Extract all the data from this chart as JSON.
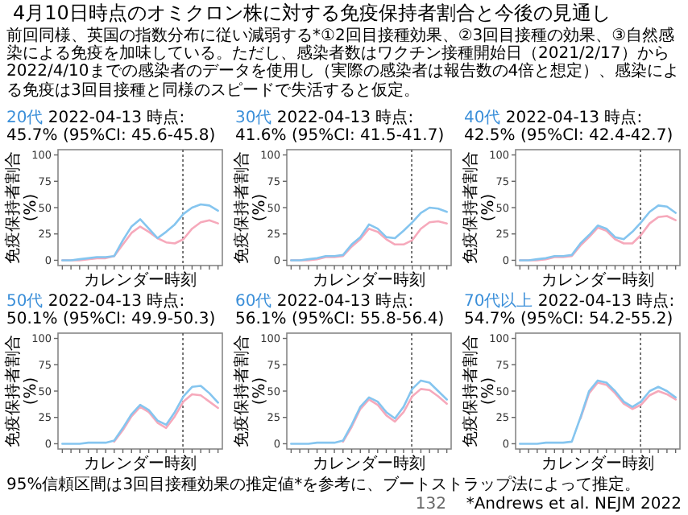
{
  "chart_data": [
    {
      "type": "line",
      "title": "20代",
      "subtitle": "2022-04-13 時点: 45.7% (95%CI: 45.6-45.8)",
      "ylabel": "免疫保持者割合(%)",
      "xlabel": "カレンダー時刻",
      "categories": [
        null,
        null,
        null,
        null,
        null,
        null,
        null,
        null,
        null,
        null,
        null,
        null,
        null,
        null,
        null,
        null,
        null,
        null,
        null
      ],
      "ylim": [
        -5,
        105
      ],
      "yticks": [
        0,
        25,
        50,
        75,
        100
      ],
      "tick_labels": "y",
      "series": [
        {
          "color": "#f6a9bb",
          "values": [
            0,
            0,
            0,
            1,
            2,
            2,
            4,
            15,
            26,
            32,
            27,
            21,
            17,
            16,
            20,
            30,
            36,
            38,
            35
          ]
        },
        {
          "color": "#85c5ef",
          "values": [
            0,
            0,
            1,
            2,
            3,
            3,
            4,
            19,
            32,
            39,
            30,
            21,
            27,
            34,
            44,
            50,
            53,
            52,
            47
          ]
        }
      ],
      "annotations": [
        "4月10日時点のオミクロン株に対する免疫保持者割合と今後の見通し",
        "前回同様、英国の指数分布に従い減弱する*①2回目接種効果、②3回目接種の効果、③自然感染による免疫を加味している。ただし、感染者数はワクチン接種開始日（2021/2/17）から2022/4/10までの感染者のデータを使用し（実際の感染者は報告数の4倍と想定）、感染による免疫は3回目接種と同様のスピードで失活すると仮定。"
      ]
    },
    {
      "type": "line",
      "title": "30代",
      "subtitle": "2022-04-13 時点: 41.6% (95%CI: 41.5-41.7)",
      "ylabel": "免疫保持者割合(%)",
      "xlabel": "カレンダー時刻",
      "categories": [
        null,
        null,
        null,
        null,
        null,
        null,
        null,
        null,
        null,
        null,
        null,
        null,
        null,
        null,
        null,
        null,
        null,
        null,
        null
      ],
      "ylim": [
        -5,
        105
      ],
      "yticks": [
        0,
        25,
        50,
        75,
        100
      ],
      "tick_labels": "y",
      "series": [
        {
          "color": "#f6a9bb",
          "values": [
            0,
            0,
            0,
            1,
            3,
            3,
            4,
            13,
            20,
            30,
            27,
            20,
            15,
            15,
            19,
            30,
            36,
            37,
            35
          ]
        },
        {
          "color": "#85c5ef",
          "values": [
            0,
            0,
            1,
            2,
            4,
            4,
            5,
            15,
            22,
            34,
            30,
            22,
            21,
            28,
            36,
            45,
            50,
            49,
            46
          ]
        }
      ]
    },
    {
      "type": "line",
      "title": "40代",
      "subtitle": "2022-04-13 時点: 42.5% (95%CI: 42.4-42.7)",
      "ylabel": "免疫保持者割合(%)",
      "xlabel": "カレンダー時刻",
      "categories": [
        null,
        null,
        null,
        null,
        null,
        null,
        null,
        null,
        null,
        null,
        null,
        null,
        null,
        null,
        null,
        null,
        null,
        null,
        null
      ],
      "ylim": [
        -5,
        105
      ],
      "yticks": [
        0,
        25,
        50,
        75,
        100
      ],
      "tick_labels": "y",
      "series": [
        {
          "color": "#f6a9bb",
          "values": [
            0,
            0,
            0,
            1,
            3,
            3,
            4,
            14,
            22,
            31,
            28,
            20,
            16,
            16,
            24,
            35,
            41,
            42,
            38
          ]
        },
        {
          "color": "#85c5ef",
          "values": [
            0,
            0,
            1,
            2,
            4,
            4,
            5,
            16,
            24,
            33,
            30,
            22,
            20,
            27,
            36,
            46,
            52,
            51,
            45
          ]
        }
      ]
    },
    {
      "type": "line",
      "title": "50代",
      "subtitle": "2022-04-13 時点: 50.1% (95%CI: 49.9-50.3)",
      "ylabel": "免疫保持者割合(%)",
      "xlabel": "カレンダー時刻",
      "categories": [
        null,
        null,
        null,
        null,
        null,
        null,
        null,
        null,
        null,
        null,
        null,
        null,
        null,
        null,
        null,
        null,
        null,
        null,
        null
      ],
      "ylim": [
        -5,
        105
      ],
      "yticks": [
        0,
        25,
        50,
        75,
        100
      ],
      "tick_labels": "y",
      "series": [
        {
          "color": "#f6a9bb",
          "values": [
            null,
            null,
            null,
            null,
            null,
            null,
            2,
            13,
            26,
            35,
            30,
            20,
            15,
            26,
            40,
            47,
            46,
            40,
            34
          ]
        },
        {
          "color": "#85c5ef",
          "values": [
            0,
            0,
            0,
            1,
            1,
            1,
            3,
            15,
            28,
            37,
            32,
            22,
            18,
            30,
            45,
            54,
            55,
            48,
            39
          ]
        }
      ]
    },
    {
      "type": "line",
      "title": "60代",
      "subtitle": "2022-04-13 時点: 56.1% (95%CI: 55.8-56.4)",
      "ylabel": "免疫保持者割合(%)",
      "xlabel": "カレンダー時刻",
      "categories": [
        null,
        null,
        null,
        null,
        null,
        null,
        null,
        null,
        null,
        null,
        null,
        null,
        null,
        null,
        null,
        null,
        null,
        null,
        null
      ],
      "ylim": [
        -5,
        105
      ],
      "yticks": [
        0,
        25,
        50,
        75,
        100
      ],
      "tick_labels": "y",
      "series": [
        {
          "color": "#f6a9bb",
          "values": [
            null,
            null,
            null,
            null,
            null,
            null,
            2,
            16,
            33,
            42,
            37,
            27,
            21,
            30,
            45,
            52,
            51,
            45,
            38
          ]
        },
        {
          "color": "#85c5ef",
          "values": [
            0,
            0,
            0,
            1,
            1,
            1,
            3,
            18,
            35,
            44,
            40,
            30,
            24,
            35,
            52,
            60,
            58,
            50,
            42
          ]
        }
      ]
    },
    {
      "type": "line",
      "title": "70代以上",
      "subtitle": "2022-04-13 時点: 54.7% (95%CI: 54.2-55.2)",
      "ylabel": "免疫保持者割合(%)",
      "xlabel": "カレンダー時刻",
      "categories": [
        null,
        null,
        null,
        null,
        null,
        null,
        null,
        null,
        null,
        null,
        null,
        null,
        null,
        null,
        null,
        null,
        null,
        null,
        null
      ],
      "ylim": [
        -5,
        105
      ],
      "yticks": [
        0,
        25,
        50,
        75,
        100
      ],
      "tick_labels": "y",
      "series": [
        {
          "color": "#f6a9bb",
          "values": [
            null,
            null,
            null,
            null,
            null,
            null,
            null,
            24,
            48,
            58,
            56,
            48,
            38,
            33,
            37,
            46,
            50,
            47,
            42
          ]
        },
        {
          "color": "#85c5ef",
          "values": [
            0,
            0,
            0,
            1,
            1,
            1,
            2,
            25,
            50,
            60,
            58,
            50,
            40,
            35,
            40,
            50,
            54,
            50,
            44
          ]
        }
      ],
      "annotations": [
        "95%信頼区間は3回目接種効果の推定値*を参考に、ブートストラップ法によって推定。",
        "132",
        "*Andrews et al. NEJM 2022"
      ]
    }
  ]
}
